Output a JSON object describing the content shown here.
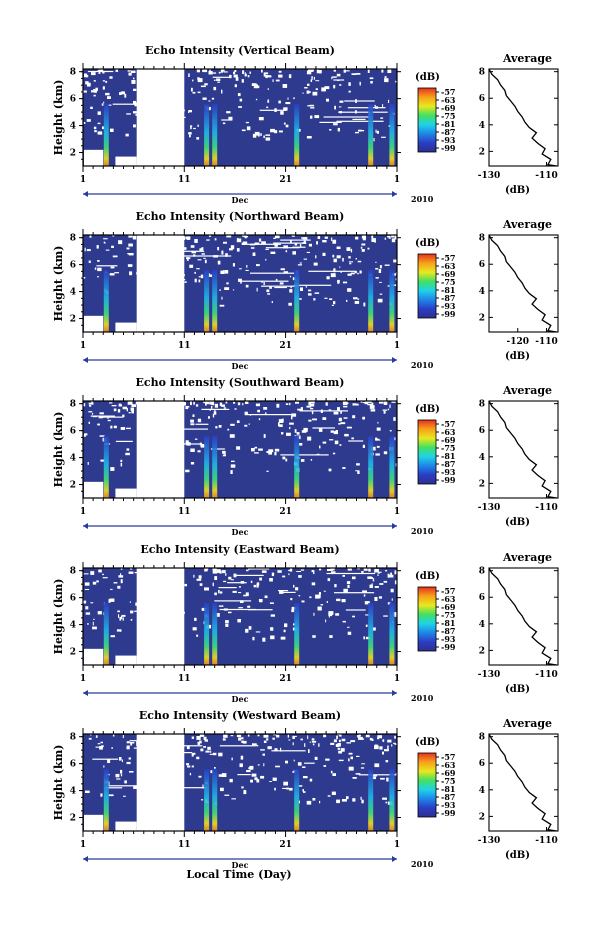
{
  "figure": {
    "xlabel": "Local Time (Day)",
    "month_label": "Dec",
    "year_label": "2010",
    "x_ticks": [
      "1",
      "11",
      "21",
      "1"
    ],
    "y_ticks": [
      "8",
      "6",
      "4",
      "2"
    ],
    "ylabel": "Height (km)",
    "colorbar_unit": "(dB)",
    "colorbar_ticks": [
      "-57",
      "-63",
      "-69",
      "-75",
      "-81",
      "-87",
      "-93",
      "-99"
    ],
    "colorbar_colors": [
      "#e8301e",
      "#f7a21a",
      "#e8e81e",
      "#42e060",
      "#1fd3e8",
      "#1f86e8",
      "#2a3ec4",
      "#2e2f8f"
    ],
    "avg_title": "Average",
    "avg_unit": "(dB)",
    "avg_y_ticks": [
      "8",
      "6",
      "4",
      "2"
    ]
  },
  "chart_data": [
    {
      "type": "heatmap",
      "title": "Echo Intensity (Vertical Beam)",
      "ylabel": "Height (km)",
      "xlabel": "Dec 2010",
      "xlim": [
        1,
        32
      ],
      "ylim": [
        1,
        8.2
      ],
      "colorbar": {
        "label": "(dB)",
        "range": [
          -99,
          -57
        ]
      },
      "data_gap": [
        6.3,
        11
      ],
      "intense_bands": [
        3.3,
        13.2,
        14.0,
        22.1,
        29.4,
        31.5
      ],
      "profile": {
        "title": "Average",
        "x_ticks": [
          "-130",
          "-110"
        ],
        "xlim": [
          -130,
          -106
        ],
        "xlabel": "(dB)",
        "height": [
          8.2,
          7.8,
          7.4,
          7.0,
          6.6,
          6.2,
          5.8,
          5.4,
          5.0,
          4.6,
          4.2,
          3.8,
          3.4,
          3.0,
          2.6,
          2.2,
          1.8,
          1.4,
          1.0,
          0.9
        ],
        "intensity": [
          -130,
          -129,
          -127,
          -126,
          -124.5,
          -124,
          -122.5,
          -121,
          -120,
          -118.5,
          -117.5,
          -116,
          -113.5,
          -115,
          -113,
          -110.5,
          -111.5,
          -108.5,
          -109.5,
          -106.5
        ]
      }
    },
    {
      "type": "heatmap",
      "title": "Echo Intensity (Northward Beam)",
      "ylabel": "Height (km)",
      "xlabel": "Dec 2010",
      "xlim": [
        1,
        32
      ],
      "ylim": [
        1,
        8.2
      ],
      "colorbar": {
        "label": "(dB)",
        "range": [
          -99,
          -57
        ]
      },
      "data_gap": [
        6.3,
        11
      ],
      "intense_bands": [
        3.3,
        13.2,
        14.0,
        22.1,
        29.4,
        31.5
      ],
      "profile": {
        "title": "Average",
        "x_ticks": [
          "-120",
          "-110"
        ],
        "xlim": [
          -130,
          -106
        ],
        "xlabel": "(dB)",
        "height": [
          8.2,
          7.8,
          7.4,
          7.0,
          6.6,
          6.2,
          5.8,
          5.4,
          5.0,
          4.6,
          4.2,
          3.8,
          3.4,
          3.0,
          2.6,
          2.2,
          1.8,
          1.4,
          1.0,
          0.9
        ],
        "intensity": [
          -130,
          -129,
          -127,
          -126,
          -124.5,
          -124,
          -122.5,
          -121,
          -120,
          -118.5,
          -117.5,
          -116,
          -113.5,
          -115,
          -113,
          -110.5,
          -111.5,
          -108.5,
          -109.5,
          -106.5
        ]
      }
    },
    {
      "type": "heatmap",
      "title": "Echo Intensity (Southward Beam)",
      "ylabel": "Height (km)",
      "xlabel": "Dec 2010",
      "xlim": [
        1,
        32
      ],
      "ylim": [
        1,
        8.2
      ],
      "colorbar": {
        "label": "(dB)",
        "range": [
          -99,
          -57
        ]
      },
      "data_gap": [
        6.3,
        11
      ],
      "intense_bands": [
        3.3,
        13.2,
        14.0,
        22.1,
        29.4,
        31.5
      ],
      "profile": {
        "title": "Average",
        "x_ticks": [
          "-130",
          "-110"
        ],
        "xlim": [
          -130,
          -106
        ],
        "xlabel": "(dB)",
        "height": [
          8.2,
          7.8,
          7.4,
          7.0,
          6.6,
          6.2,
          5.8,
          5.4,
          5.0,
          4.6,
          4.2,
          3.8,
          3.4,
          3.0,
          2.6,
          2.2,
          1.8,
          1.4,
          1.0,
          0.9
        ],
        "intensity": [
          -130,
          -129,
          -127,
          -126,
          -124.5,
          -124,
          -122.5,
          -121,
          -120,
          -118.5,
          -117.5,
          -116,
          -113.5,
          -115,
          -113,
          -110.5,
          -111.5,
          -108.5,
          -109.5,
          -106.5
        ]
      }
    },
    {
      "type": "heatmap",
      "title": "Echo Intensity (Eastward Beam)",
      "ylabel": "Height (km)",
      "xlabel": "Dec 2010",
      "xlim": [
        1,
        32
      ],
      "ylim": [
        1,
        8.2
      ],
      "colorbar": {
        "label": "(dB)",
        "range": [
          -99,
          -57
        ]
      },
      "data_gap": [
        6.3,
        11
      ],
      "intense_bands": [
        3.3,
        13.2,
        14.0,
        22.1,
        29.4,
        31.5
      ],
      "profile": {
        "title": "Average",
        "x_ticks": [
          "-130",
          "-110"
        ],
        "xlim": [
          -130,
          -106
        ],
        "xlabel": "(dB)",
        "height": [
          8.2,
          7.8,
          7.4,
          7.0,
          6.6,
          6.2,
          5.8,
          5.4,
          5.0,
          4.6,
          4.2,
          3.8,
          3.4,
          3.0,
          2.6,
          2.2,
          1.8,
          1.4,
          1.0,
          0.9
        ],
        "intensity": [
          -130,
          -129,
          -127,
          -126,
          -124.5,
          -124,
          -122.5,
          -121,
          -120,
          -118.5,
          -117.5,
          -116,
          -113.5,
          -115,
          -113,
          -110.5,
          -111.5,
          -108.5,
          -109.5,
          -106.5
        ]
      }
    },
    {
      "type": "heatmap",
      "title": "Echo Intensity (Westward Beam)",
      "ylabel": "Height (km)",
      "xlabel": "Dec 2010",
      "xlim": [
        1,
        32
      ],
      "ylim": [
        1,
        8.2
      ],
      "colorbar": {
        "label": "(dB)",
        "range": [
          -99,
          -57
        ]
      },
      "data_gap": [
        6.3,
        11
      ],
      "intense_bands": [
        3.3,
        13.2,
        14.0,
        22.1,
        29.4,
        31.5
      ],
      "profile": {
        "title": "Average",
        "x_ticks": [
          "-130",
          "-110"
        ],
        "xlim": [
          -130,
          -106
        ],
        "xlabel": "(dB)",
        "height": [
          8.2,
          7.8,
          7.4,
          7.0,
          6.6,
          6.2,
          5.8,
          5.4,
          5.0,
          4.6,
          4.2,
          3.8,
          3.4,
          3.0,
          2.6,
          2.2,
          1.8,
          1.4,
          1.0,
          0.9
        ],
        "intensity": [
          -130,
          -129,
          -127,
          -126,
          -124.5,
          -124,
          -122.5,
          -121,
          -120,
          -118.5,
          -117.5,
          -116,
          -113.5,
          -115,
          -113,
          -110.5,
          -111.5,
          -108.5,
          -109.5,
          -106.5
        ]
      }
    }
  ]
}
